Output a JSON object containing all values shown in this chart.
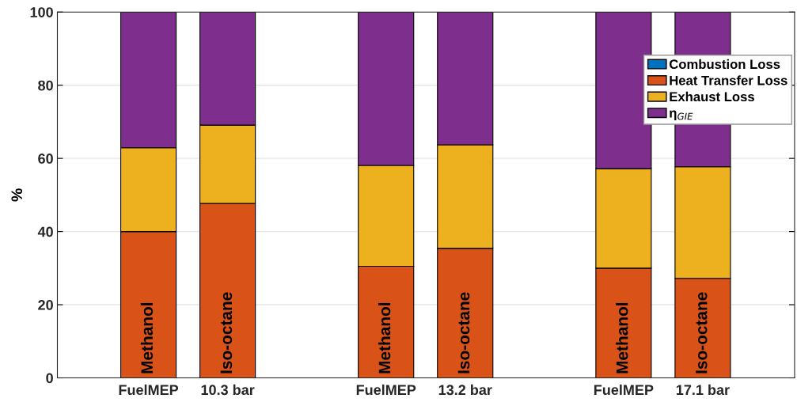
{
  "chart_data": {
    "type": "bar",
    "stacked": true,
    "ylabel": "%",
    "categories": [
      "FuelMEP",
      "10.3 bar",
      null,
      "FuelMEP",
      "13.2 bar",
      null,
      "FuelMEP",
      "17.1 bar"
    ],
    "series": [
      {
        "name": "Combustion Loss",
        "color": "#0072bd",
        "values": [
          0,
          0,
          null,
          0,
          0,
          null,
          0,
          0
        ]
      },
      {
        "name": "Heat Transfer Loss",
        "color": "#d95319",
        "values": [
          40.0,
          47.7,
          null,
          30.5,
          35.4,
          null,
          30.0,
          27.2
        ]
      },
      {
        "name": "Exhaust Loss",
        "color": "#edb120",
        "values": [
          22.9,
          21.4,
          null,
          27.6,
          28.3,
          null,
          27.2,
          30.5
        ]
      },
      {
        "name": "η$_{GIE}$",
        "color": "#7e2f8e",
        "values": [
          37.1,
          30.9,
          null,
          41.9,
          36.3,
          null,
          42.8,
          42.3
        ]
      }
    ],
    "annotations": [
      "Methanol",
      "Iso-octane",
      "Methanol",
      "Iso-octane",
      "Methanol",
      "Iso-octane"
    ],
    "ylim": [
      0,
      100
    ],
    "yticks": [
      0,
      20,
      40,
      60,
      80,
      100
    ],
    "grid": "y",
    "legend": "top right"
  }
}
